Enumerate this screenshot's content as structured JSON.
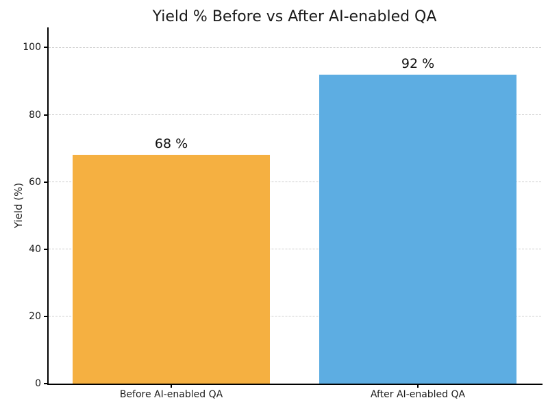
{
  "chart_data": {
    "type": "bar",
    "title": "Yield % Before vs After AI-enabled QA",
    "xlabel": "",
    "ylabel": "Yield (%)",
    "categories": [
      "Before AI-enabled QA",
      "After AI-enabled QA"
    ],
    "values": [
      68,
      92
    ],
    "value_labels": [
      "68 %",
      "92 %"
    ],
    "bar_colors": [
      "#F5B041",
      "#5DADE2"
    ],
    "yticks": [
      0,
      20,
      40,
      60,
      80,
      100
    ],
    "ylim": [
      0,
      106
    ],
    "bar_width_fraction": 0.8,
    "grid": {
      "axis": "y",
      "style": "dashed",
      "color": "#cccccc"
    },
    "legend": "none"
  },
  "colors": {
    "background": "#ffffff",
    "title_text": "#1a1a1a",
    "tick_text": "#1a1a1a",
    "value_label_text": "#111111",
    "spine": "#000000",
    "gridline": "#cccccc"
  }
}
